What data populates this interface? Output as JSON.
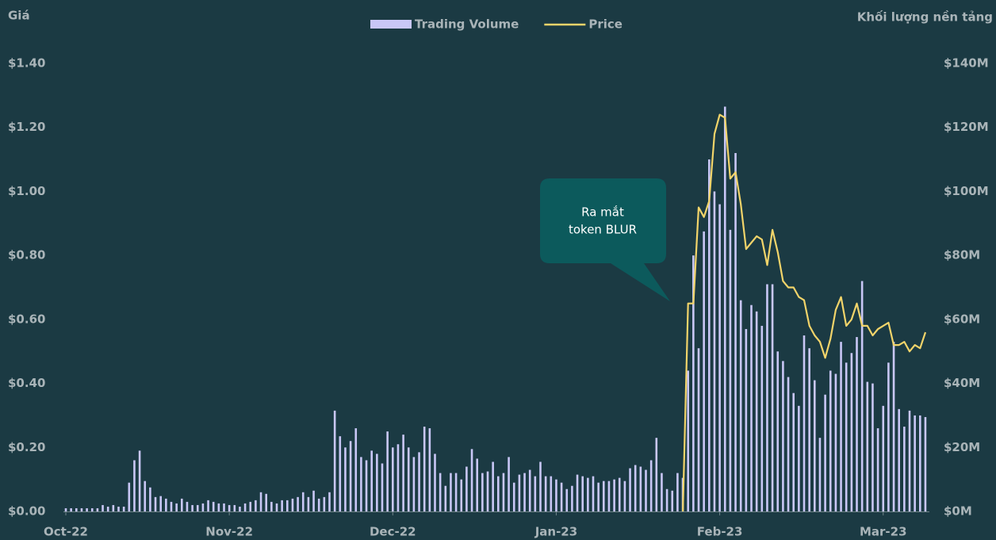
{
  "chart_data": {
    "type": "bar-line",
    "ylabel": "Giá",
    "y2label": "Khối lượng nền tảng",
    "annotations": [
      {
        "lines": [
          "Ra mắt",
          "token BLUR"
        ]
      }
    ],
    "legend": "top",
    "grid": false,
    "categories": [
      "Oct-22",
      null,
      null,
      null,
      null,
      null,
      null,
      null,
      null,
      null,
      null,
      null,
      null,
      null,
      null,
      null,
      null,
      null,
      null,
      null,
      null,
      null,
      null,
      null,
      null,
      null,
      null,
      null,
      null,
      null,
      null,
      "Nov-22",
      null,
      null,
      null,
      null,
      null,
      null,
      null,
      null,
      null,
      null,
      null,
      null,
      null,
      null,
      null,
      null,
      null,
      null,
      null,
      null,
      null,
      null,
      null,
      null,
      null,
      null,
      null,
      null,
      null,
      null,
      "Dec-22",
      null,
      null,
      null,
      null,
      null,
      null,
      null,
      null,
      null,
      null,
      null,
      null,
      null,
      null,
      null,
      null,
      null,
      null,
      null,
      null,
      null,
      null,
      null,
      null,
      null,
      null,
      null,
      null,
      null,
      null,
      "Jan-23",
      null,
      null,
      null,
      null,
      null,
      null,
      null,
      null,
      null,
      null,
      null,
      null,
      null,
      null,
      null,
      null,
      null,
      null,
      null,
      null,
      null,
      null,
      null,
      null,
      null,
      null,
      null,
      null,
      null,
      null,
      "Feb-23",
      null,
      null,
      null,
      null,
      null,
      null,
      null,
      null,
      null,
      null,
      null,
      null,
      null,
      null,
      null,
      null,
      null,
      null,
      null,
      null,
      null,
      null,
      null,
      null,
      null,
      null,
      null,
      null,
      null,
      null,
      "Mar-23",
      null,
      null,
      null,
      null,
      null,
      null,
      null,
      null
    ],
    "series": [
      {
        "name": "Trading Volume",
        "type": "bar",
        "axis": "y2",
        "color": "#c9c7f6",
        "values": [
          1,
          1,
          1,
          1,
          1,
          1,
          1,
          2,
          1.5,
          2,
          1.5,
          1.5,
          9,
          16,
          19,
          9.5,
          7.5,
          4.5,
          4.8,
          4,
          3,
          2.5,
          4,
          3,
          2,
          2,
          2.5,
          3.5,
          3,
          2.5,
          2.5,
          2,
          2,
          1.5,
          2.5,
          3,
          3.5,
          6,
          5.5,
          3,
          2.5,
          3.5,
          3.5,
          4,
          4.5,
          6,
          4.5,
          6.5,
          4,
          4.5,
          6,
          31.5,
          23.5,
          20,
          22,
          26,
          17,
          16,
          19,
          18,
          15,
          25,
          20,
          21,
          24,
          20,
          17,
          18.5,
          26.5,
          26,
          18,
          12,
          8,
          12,
          12,
          10,
          14,
          19.5,
          16.5,
          12,
          12.5,
          15.5,
          11,
          12,
          17,
          9,
          11.5,
          12,
          13,
          11,
          15.5,
          11,
          11,
          10,
          9,
          7,
          8,
          11.5,
          11,
          10.5,
          11,
          9,
          9.5,
          9.5,
          10,
          10.5,
          9.5,
          13.5,
          14.5,
          14,
          13,
          16,
          23,
          12,
          7,
          6.5,
          12,
          10.5,
          44,
          80,
          51,
          87.5,
          110,
          100,
          96,
          126.5,
          88,
          112,
          66,
          57,
          64.5,
          62.5,
          58,
          71,
          71,
          50,
          47,
          42,
          37,
          33,
          55,
          51,
          41,
          23,
          36.5,
          44,
          43,
          53,
          46.5,
          49.5,
          54.5,
          72,
          40.5,
          40,
          26,
          33,
          46.5,
          53,
          32,
          26.5,
          31.5,
          30,
          30,
          29.5
        ]
      },
      {
        "name": "Price",
        "type": "line",
        "axis": "y",
        "color": "#f2d46a",
        "values": [
          null,
          null,
          null,
          null,
          null,
          null,
          null,
          null,
          null,
          null,
          null,
          null,
          null,
          null,
          null,
          null,
          null,
          null,
          null,
          null,
          null,
          null,
          null,
          null,
          null,
          null,
          null,
          null,
          null,
          null,
          null,
          null,
          null,
          null,
          null,
          null,
          null,
          null,
          null,
          null,
          null,
          null,
          null,
          null,
          null,
          null,
          null,
          null,
          null,
          null,
          null,
          null,
          null,
          null,
          null,
          null,
          null,
          null,
          null,
          null,
          null,
          null,
          null,
          null,
          null,
          null,
          null,
          null,
          null,
          null,
          null,
          null,
          null,
          null,
          null,
          null,
          null,
          null,
          null,
          null,
          null,
          null,
          null,
          null,
          null,
          null,
          null,
          null,
          null,
          null,
          null,
          null,
          null,
          null,
          null,
          null,
          null,
          null,
          null,
          null,
          null,
          null,
          null,
          null,
          null,
          null,
          null,
          null,
          null,
          null,
          null,
          null,
          null,
          null,
          null,
          null,
          null,
          0,
          0.65,
          0.65,
          0.95,
          0.92,
          0.97,
          1.18,
          1.24,
          1.23,
          1.04,
          1.06,
          0.96,
          0.82,
          0.84,
          0.86,
          0.85,
          0.77,
          0.88,
          0.81,
          0.72,
          0.7,
          0.7,
          0.67,
          0.66,
          0.58,
          0.55,
          0.53,
          0.48,
          0.54,
          0.63,
          0.67,
          0.58,
          0.6,
          0.65,
          0.58,
          0.58,
          0.55,
          0.57,
          0.58,
          0.59,
          0.52,
          0.52,
          0.53,
          0.5,
          0.52,
          0.51,
          0.56
        ]
      }
    ],
    "ylim": [
      0,
      1.4
    ],
    "yticks": [
      {
        "value": 0,
        "label": "$0.00"
      },
      {
        "value": 0.2,
        "label": "$0.20"
      },
      {
        "value": 0.4,
        "label": "$0.40"
      },
      {
        "value": 0.6,
        "label": "$0.60"
      },
      {
        "value": 0.8,
        "label": "$0.80"
      },
      {
        "value": 1.0,
        "label": "$1.00"
      },
      {
        "value": 1.2,
        "label": "$1.20"
      },
      {
        "value": 1.4,
        "label": "$1.40"
      }
    ],
    "y2lim": [
      0,
      140
    ],
    "y2ticks": [
      {
        "value": 0,
        "label": "$0M"
      },
      {
        "value": 20,
        "label": "$20M"
      },
      {
        "value": 40,
        "label": "$40M"
      },
      {
        "value": 60,
        "label": "$60M"
      },
      {
        "value": 80,
        "label": "$80M"
      },
      {
        "value": 100,
        "label": "$100M"
      },
      {
        "value": 120,
        "label": "$120M"
      },
      {
        "value": 140,
        "label": "$140M"
      }
    ]
  }
}
